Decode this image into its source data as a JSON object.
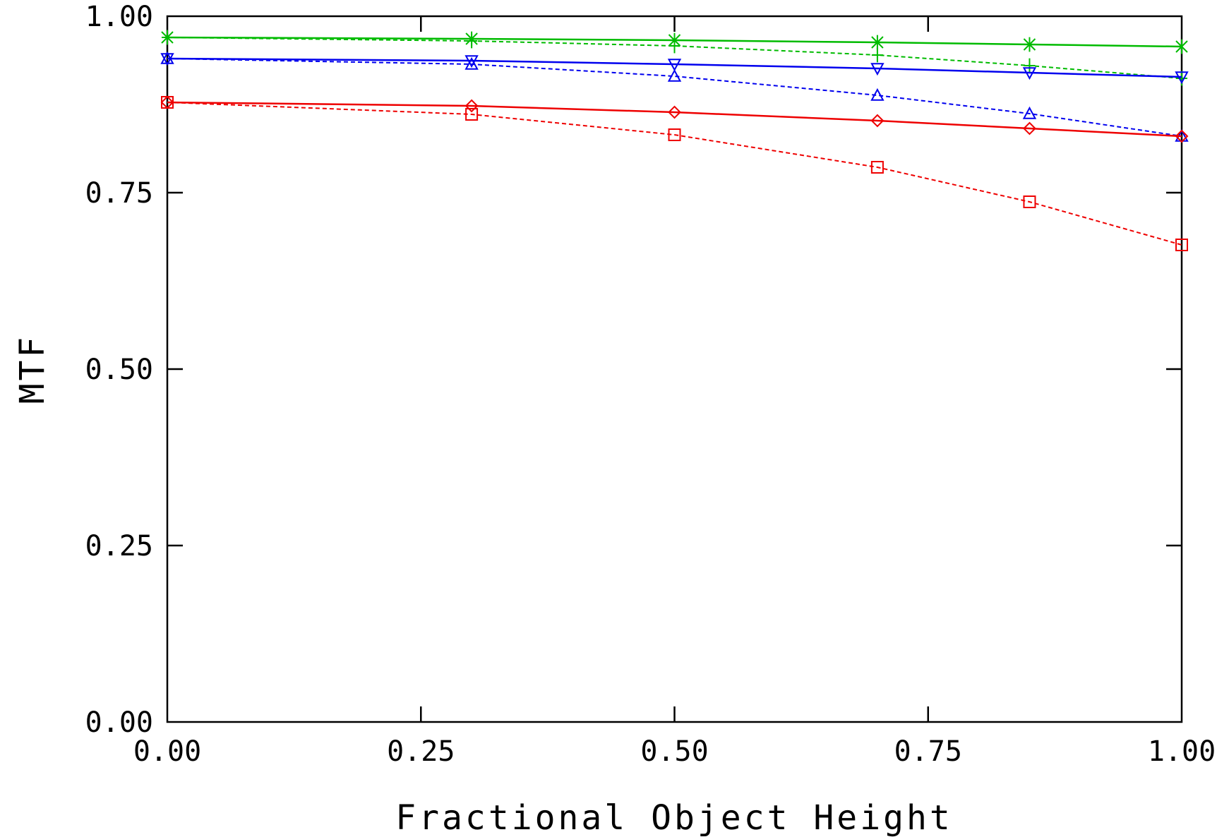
{
  "chart_data": {
    "type": "line",
    "title": "",
    "xlabel": "Fractional Object Height",
    "ylabel": "MTF",
    "xlim": [
      0,
      1
    ],
    "ylim": [
      0,
      1
    ],
    "xticks": [
      "0.00",
      "0.25",
      "0.50",
      "0.75",
      "1.00"
    ],
    "yticks": [
      "0.00",
      "0.25",
      "0.50",
      "0.75",
      "1.00"
    ],
    "grid": false,
    "x": [
      0.0,
      0.3,
      0.5,
      0.7,
      0.85,
      1.0
    ],
    "series": [
      {
        "color": "#00bb00",
        "dash": false,
        "marker": "asterisk",
        "values": [
          0.97,
          0.968,
          0.966,
          0.963,
          0.96,
          0.957
        ]
      },
      {
        "color": "#00bb00",
        "dash": true,
        "marker": "plus",
        "values": [
          0.97,
          0.965,
          0.958,
          0.945,
          0.93,
          0.912
        ]
      },
      {
        "color": "#0000ee",
        "dash": false,
        "marker": "triangle-down",
        "values": [
          0.94,
          0.937,
          0.932,
          0.926,
          0.92,
          0.914
        ]
      },
      {
        "color": "#0000ee",
        "dash": true,
        "marker": "triangle-up",
        "values": [
          0.94,
          0.932,
          0.915,
          0.888,
          0.862,
          0.83
        ]
      },
      {
        "color": "#ee0000",
        "dash": false,
        "marker": "diamond",
        "values": [
          0.878,
          0.873,
          0.864,
          0.852,
          0.841,
          0.83
        ]
      },
      {
        "color": "#ee0000",
        "dash": true,
        "marker": "square",
        "values": [
          0.878,
          0.861,
          0.832,
          0.786,
          0.737,
          0.676
        ]
      }
    ]
  }
}
